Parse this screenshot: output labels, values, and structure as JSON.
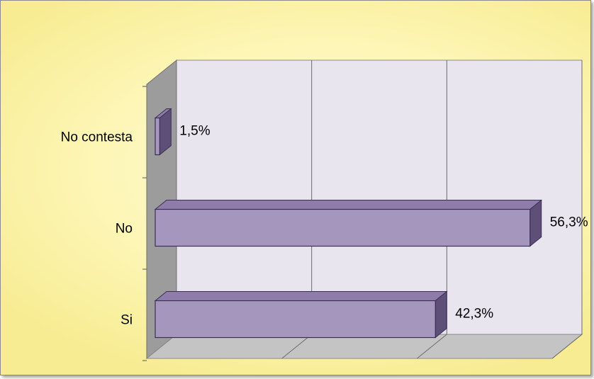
{
  "chart_data": {
    "type": "bar",
    "orientation": "horizontal",
    "style": "3d",
    "categories": [
      "No contesta",
      "No",
      "Si"
    ],
    "values": [
      1.5,
      56.3,
      42.3
    ],
    "value_labels": [
      "1,5%",
      "56,3%",
      "42,3%"
    ],
    "unit": "%",
    "xlim": [
      0,
      60
    ],
    "grid": true,
    "legend": "none",
    "title": "",
    "xlabel": "",
    "ylabel": ""
  },
  "colors": {
    "bar_front": "#a596bd",
    "bar_top": "#8e7cab",
    "bar_side": "#5e4f78",
    "bar_edge": "#3c2f55",
    "plot_back": "#e8e5ef",
    "side_wall": "#9c9c9c",
    "floor": "#c4c4c4",
    "grid": "#6b6b6b",
    "background": "#fdf6b6"
  }
}
